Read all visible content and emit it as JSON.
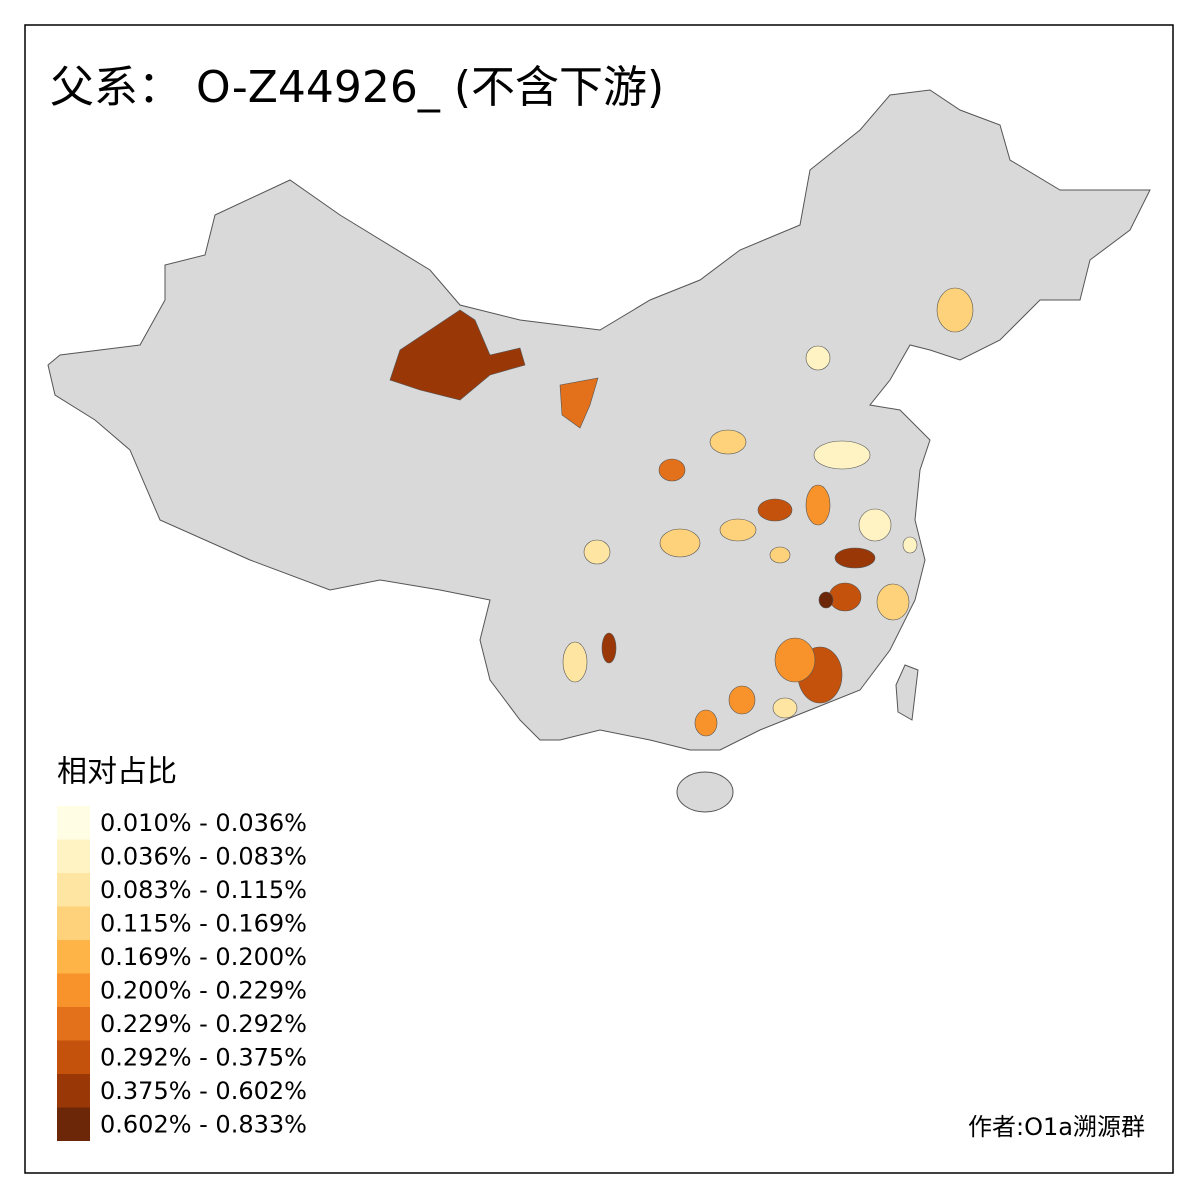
{
  "title": "父系： O-Z44926_ (不含下游)",
  "legend": {
    "title": "相对占比",
    "items": [
      {
        "label": "0.010% - 0.036%",
        "color": "#fffde3"
      },
      {
        "label": "0.036% - 0.083%",
        "color": "#fff3c4"
      },
      {
        "label": "0.083% - 0.115%",
        "color": "#fee6a2"
      },
      {
        "label": "0.115% - 0.169%",
        "color": "#fed27a"
      },
      {
        "label": "0.169% - 0.200%",
        "color": "#feb446"
      },
      {
        "label": "0.200% - 0.229%",
        "color": "#f8922a"
      },
      {
        "label": "0.229% - 0.292%",
        "color": "#e3701a"
      },
      {
        "label": "0.292% - 0.375%",
        "color": "#c4520c"
      },
      {
        "label": "0.375% - 0.602%",
        "color": "#993806"
      },
      {
        "label": "0.602% - 0.833%",
        "color": "#6b2708"
      }
    ]
  },
  "credit": "作者:O1a溯源群"
}
